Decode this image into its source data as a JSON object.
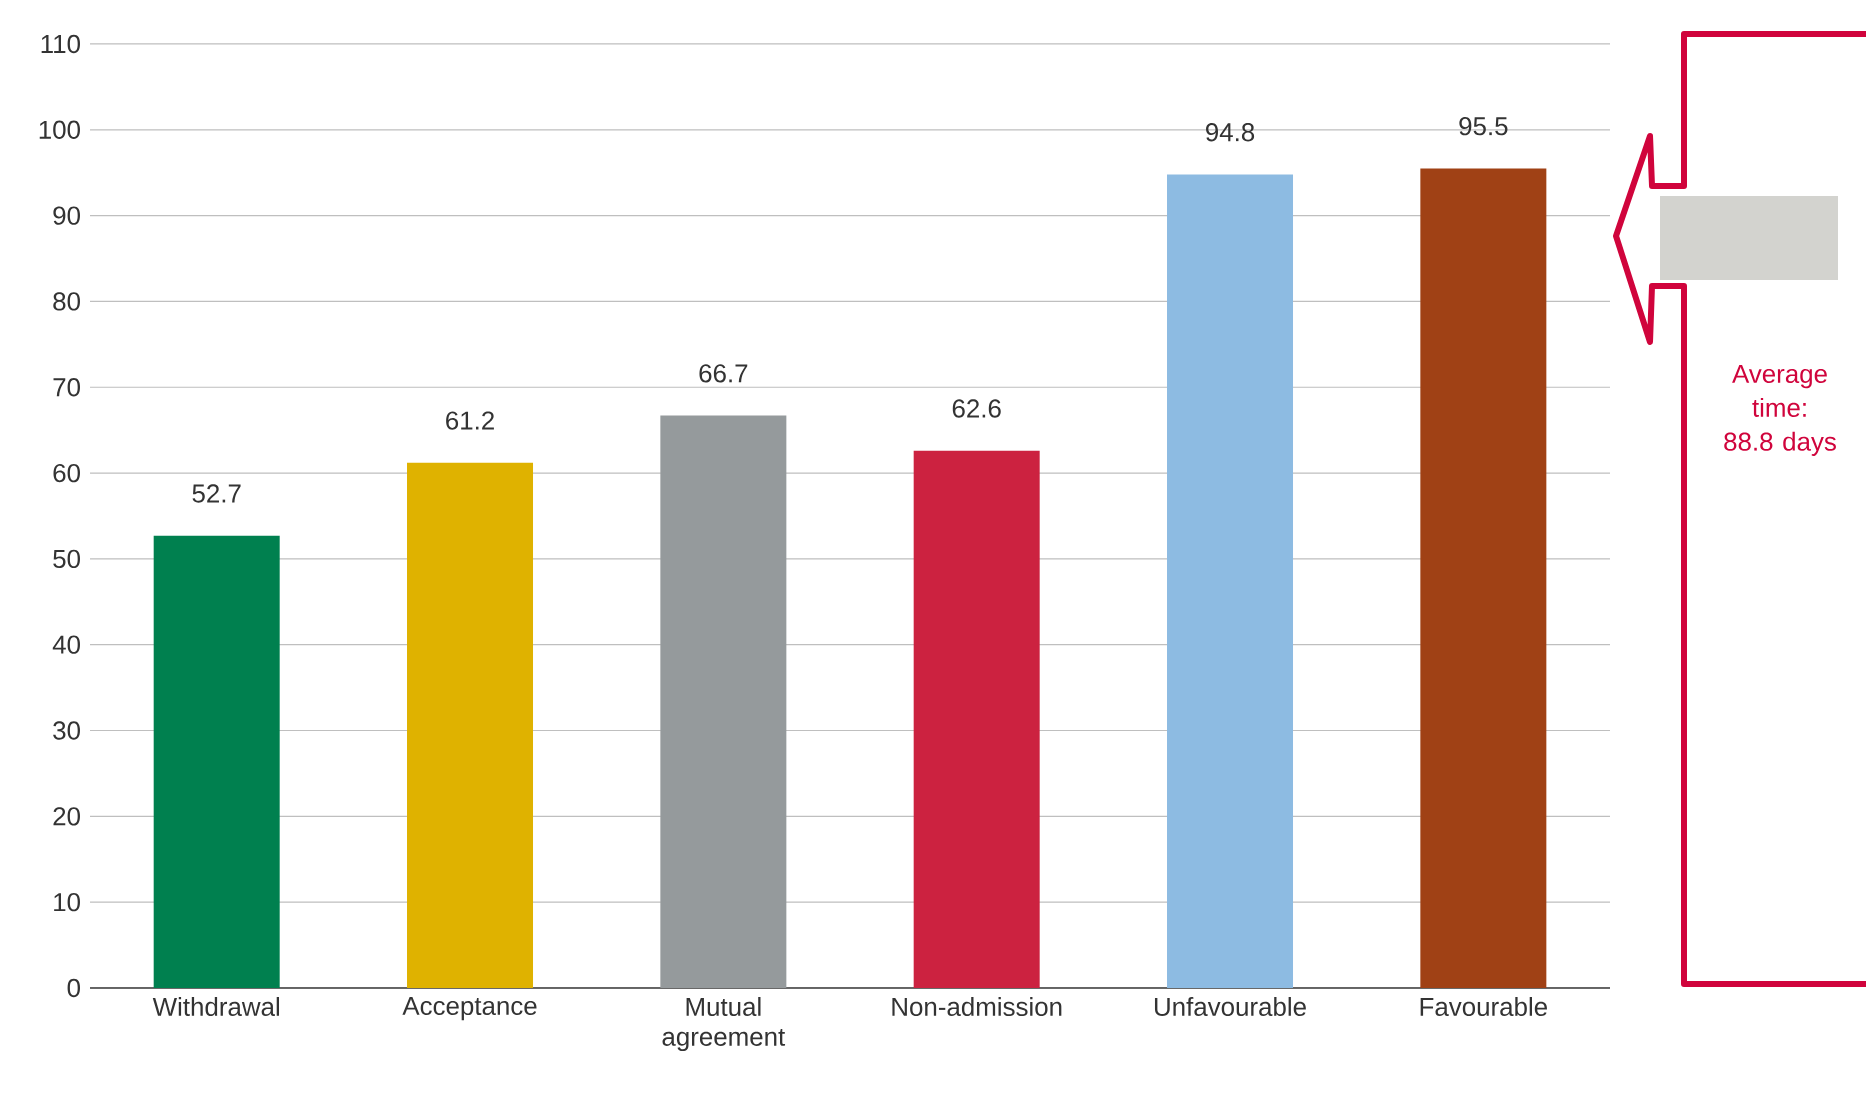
{
  "chart_data": {
    "type": "bar",
    "categories": [
      "Withdrawal",
      "Acceptance",
      "Mutual agreement",
      "Non-admission",
      "Unfavourable",
      "Favourable"
    ],
    "values": [
      52.7,
      61.2,
      66.7,
      62.6,
      94.8,
      95.5
    ],
    "colors": [
      "#00804f",
      "#dfb200",
      "#959a9c",
      "#cc2240",
      "#8dbbe2",
      "#a04115"
    ],
    "ylim": [
      0,
      110
    ],
    "yticks": [
      0,
      10,
      20,
      30,
      40,
      50,
      60,
      70,
      80,
      90,
      100,
      110
    ],
    "grid": "y",
    "data_labels": true,
    "annotations": [
      "Average time: 88.8 days"
    ]
  }
}
